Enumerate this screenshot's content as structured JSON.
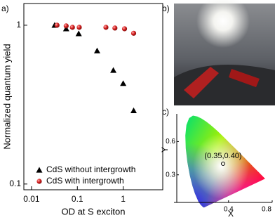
{
  "chart_data": [
    {
      "type": "scatter",
      "panel_label": "a)",
      "xlabel": "OD at S exciton",
      "ylabel": "Normalized  quantum yield",
      "xscale": "log",
      "yscale": "log",
      "xlim": [
        0.0068,
        7.3
      ],
      "ylim": [
        0.092,
        1.37
      ],
      "xticks": [
        0.01,
        0.1,
        1
      ],
      "yticks": [
        0.1,
        1
      ],
      "legend": "lower left",
      "series": [
        {
          "name": "CdS without intergrowth",
          "color": "#000000",
          "marker": "triangle",
          "x": [
            0.032,
            0.057,
            0.107,
            0.27,
            0.61,
            1.0,
            1.69
          ],
          "values": [
            1.0,
            0.95,
            0.885,
            0.69,
            0.52,
            0.43,
            0.29
          ]
        },
        {
          "name": "CdS with intergrowth",
          "color": "#d62020",
          "marker": "circle",
          "x": [
            0.036,
            0.057,
            0.078,
            0.11,
            0.42,
            0.66,
            1.07,
            1.69
          ],
          "values": [
            1.0,
            0.99,
            0.97,
            0.97,
            0.97,
            0.96,
            0.95,
            0.89
          ]
        }
      ]
    },
    {
      "type": "chromaticity",
      "panel_label": "c)",
      "xlabel": "X",
      "ylabel": "Y",
      "xlim": [
        -0.1,
        0.8
      ],
      "ylim": [
        0,
        0.85
      ],
      "xticks": [
        0.4,
        0.8
      ],
      "yticks": [
        0.3,
        0.6
      ],
      "x": [
        0.35
      ],
      "values": [
        0.4
      ],
      "annotation": "(0.35,0.40)"
    }
  ],
  "photo": {
    "panel_label": "b)"
  }
}
